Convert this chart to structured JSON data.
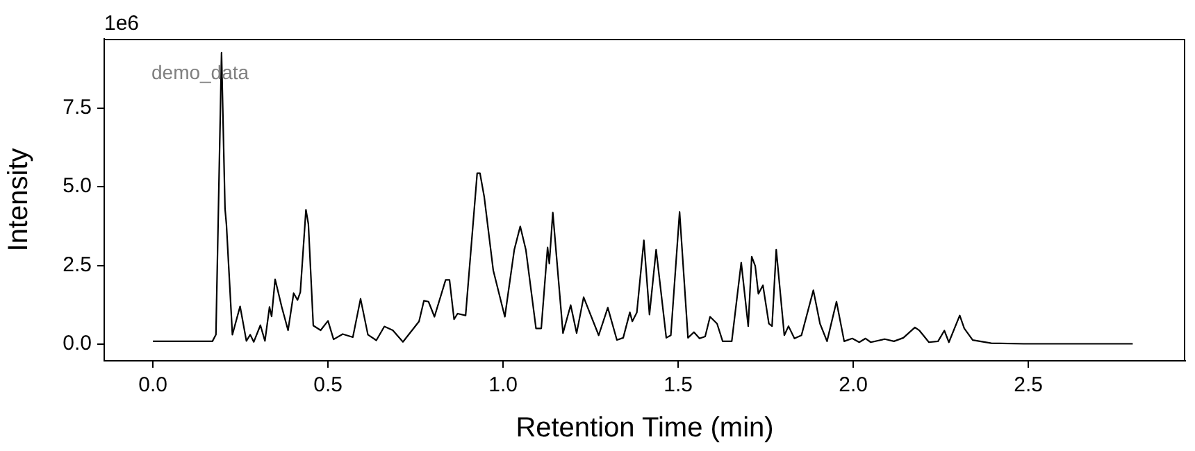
{
  "chart_data": {
    "type": "line",
    "xlabel": "Retention Time (min)",
    "ylabel": "Intensity",
    "annotations": [
      "1e6",
      "demo_data"
    ],
    "xlim": [
      -0.139,
      2.948
    ],
    "ylim": [
      -0.53,
      9.7
    ],
    "xticks": [
      {
        "value": 0,
        "label": "0.0"
      },
      {
        "value": 0.5,
        "label": "0.5"
      },
      {
        "value": 1,
        "label": "1.0"
      },
      {
        "value": 1.5,
        "label": "1.5"
      },
      {
        "value": 2,
        "label": "2.0"
      },
      {
        "value": 2.5,
        "label": "2.5"
      }
    ],
    "yticks": [
      {
        "value": 0,
        "label": "0.0"
      },
      {
        "value": 2.5,
        "label": "2.5"
      },
      {
        "value": 5,
        "label": "5.0"
      },
      {
        "value": 7.5,
        "label": "7.5"
      }
    ],
    "grid": false,
    "legend": false,
    "marker": "none",
    "line_style": "solid",
    "series": [
      {
        "color": "#000000",
        "x": [
          0,
          0.1,
          0.17,
          0.18,
          0.196,
          0.206,
          0.21,
          0.227,
          0.249,
          0.267,
          0.278,
          0.288,
          0.307,
          0.32,
          0.333,
          0.339,
          0.349,
          0.368,
          0.386,
          0.402,
          0.413,
          0.421,
          0.437,
          0.444,
          0.458,
          0.479,
          0.5,
          0.516,
          0.542,
          0.571,
          0.593,
          0.614,
          0.638,
          0.661,
          0.685,
          0.714,
          0.76,
          0.774,
          0.787,
          0.804,
          0.836,
          0.847,
          0.86,
          0.87,
          0.893,
          0.926,
          0.934,
          0.946,
          0.972,
          1.005,
          1.032,
          1.049,
          1.065,
          1.094,
          1.109,
          1.127,
          1.132,
          1.142,
          1.171,
          1.193,
          1.21,
          1.23,
          1.273,
          1.299,
          1.325,
          1.343,
          1.362,
          1.369,
          1.382,
          1.402,
          1.418,
          1.437,
          1.466,
          1.479,
          1.504,
          1.528,
          1.545,
          1.561,
          1.577,
          1.591,
          1.611,
          1.627,
          1.653,
          1.68,
          1.7,
          1.71,
          1.72,
          1.729,
          1.742,
          1.759,
          1.768,
          1.78,
          1.803,
          1.815,
          1.832,
          1.852,
          1.886,
          1.905,
          1.925,
          1.952,
          1.974,
          1.997,
          2.017,
          2.035,
          2.05,
          2.09,
          2.116,
          2.143,
          2.176,
          2.189,
          2.216,
          2.242,
          2.26,
          2.273,
          2.304,
          2.317,
          2.341,
          2.394,
          2.487,
          2.798
        ],
        "values": [
          0.09,
          0.09,
          0.09,
          0.3,
          9.26,
          4.3,
          3.8,
          0.3,
          1.2,
          0.1,
          0.3,
          0.07,
          0.6,
          0.1,
          1.18,
          0.88,
          2.06,
          1.18,
          0.44,
          1.62,
          1.4,
          1.65,
          4.27,
          3.82,
          0.59,
          0.44,
          0.74,
          0.15,
          0.32,
          0.22,
          1.44,
          0.3,
          0.12,
          0.56,
          0.44,
          0.07,
          0.72,
          1.38,
          1.35,
          0.87,
          2.04,
          2.04,
          0.79,
          0.97,
          0.91,
          5.43,
          5.43,
          4.69,
          2.34,
          0.87,
          3.0,
          3.74,
          3.0,
          0.5,
          0.5,
          3.07,
          2.56,
          4.18,
          0.35,
          1.24,
          0.35,
          1.49,
          0.28,
          1.16,
          0.13,
          0.2,
          1.01,
          0.72,
          1.01,
          3.3,
          0.94,
          3.0,
          0.2,
          0.28,
          4.2,
          0.2,
          0.38,
          0.18,
          0.24,
          0.87,
          0.65,
          0.09,
          0.09,
          2.59,
          0.57,
          2.78,
          2.48,
          1.6,
          1.87,
          0.65,
          0.57,
          3.0,
          0.28,
          0.57,
          0.18,
          0.28,
          1.71,
          0.65,
          0.09,
          1.35,
          0.09,
          0.18,
          0.06,
          0.18,
          0.06,
          0.16,
          0.09,
          0.2,
          0.53,
          0.43,
          0.06,
          0.09,
          0.43,
          0.06,
          0.91,
          0.5,
          0.13,
          0.03,
          0.01,
          0.01
        ]
      }
    ]
  }
}
